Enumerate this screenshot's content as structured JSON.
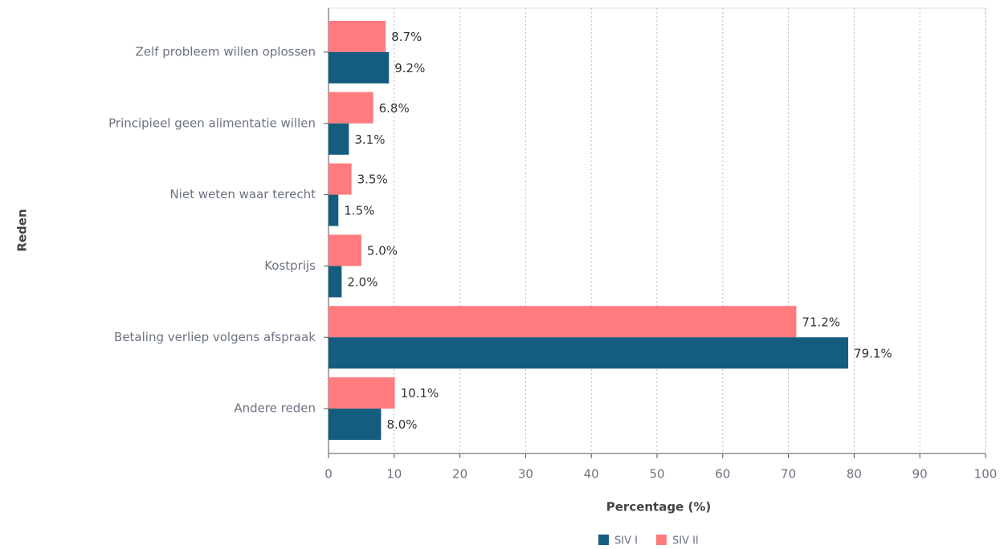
{
  "chart_data": {
    "type": "bar",
    "orientation": "horizontal",
    "x_label": "Percentage (%)",
    "y_label": "Reden",
    "categories": [
      "Zelf probleem willen oplossen",
      "Principieel geen alimentatie willen",
      "Niet weten waar terecht",
      "Kostprijs",
      "Betaling verliep volgens afspraak",
      "Andere reden"
    ],
    "series": [
      {
        "name": "SIV I",
        "color": "#155d7e",
        "values": [
          9.2,
          3.1,
          1.5,
          2.0,
          79.1,
          8.0
        ],
        "value_labels": [
          "9.2%",
          "3.1%",
          "1.5%",
          "2.0%",
          "79.1%",
          "8.0%"
        ]
      },
      {
        "name": "SIV II",
        "color": "#ff7b7e",
        "values": [
          8.7,
          6.8,
          3.5,
          5.0,
          71.2,
          10.1
        ],
        "value_labels": [
          "8.7%",
          "6.8%",
          "3.5%",
          "5.0%",
          "71.2%",
          "10.1%"
        ]
      }
    ],
    "xlim": [
      0,
      100
    ],
    "xticks": [
      0,
      10,
      20,
      30,
      40,
      50,
      60,
      70,
      80,
      90,
      100
    ],
    "grid": true,
    "legend": "bottom"
  }
}
